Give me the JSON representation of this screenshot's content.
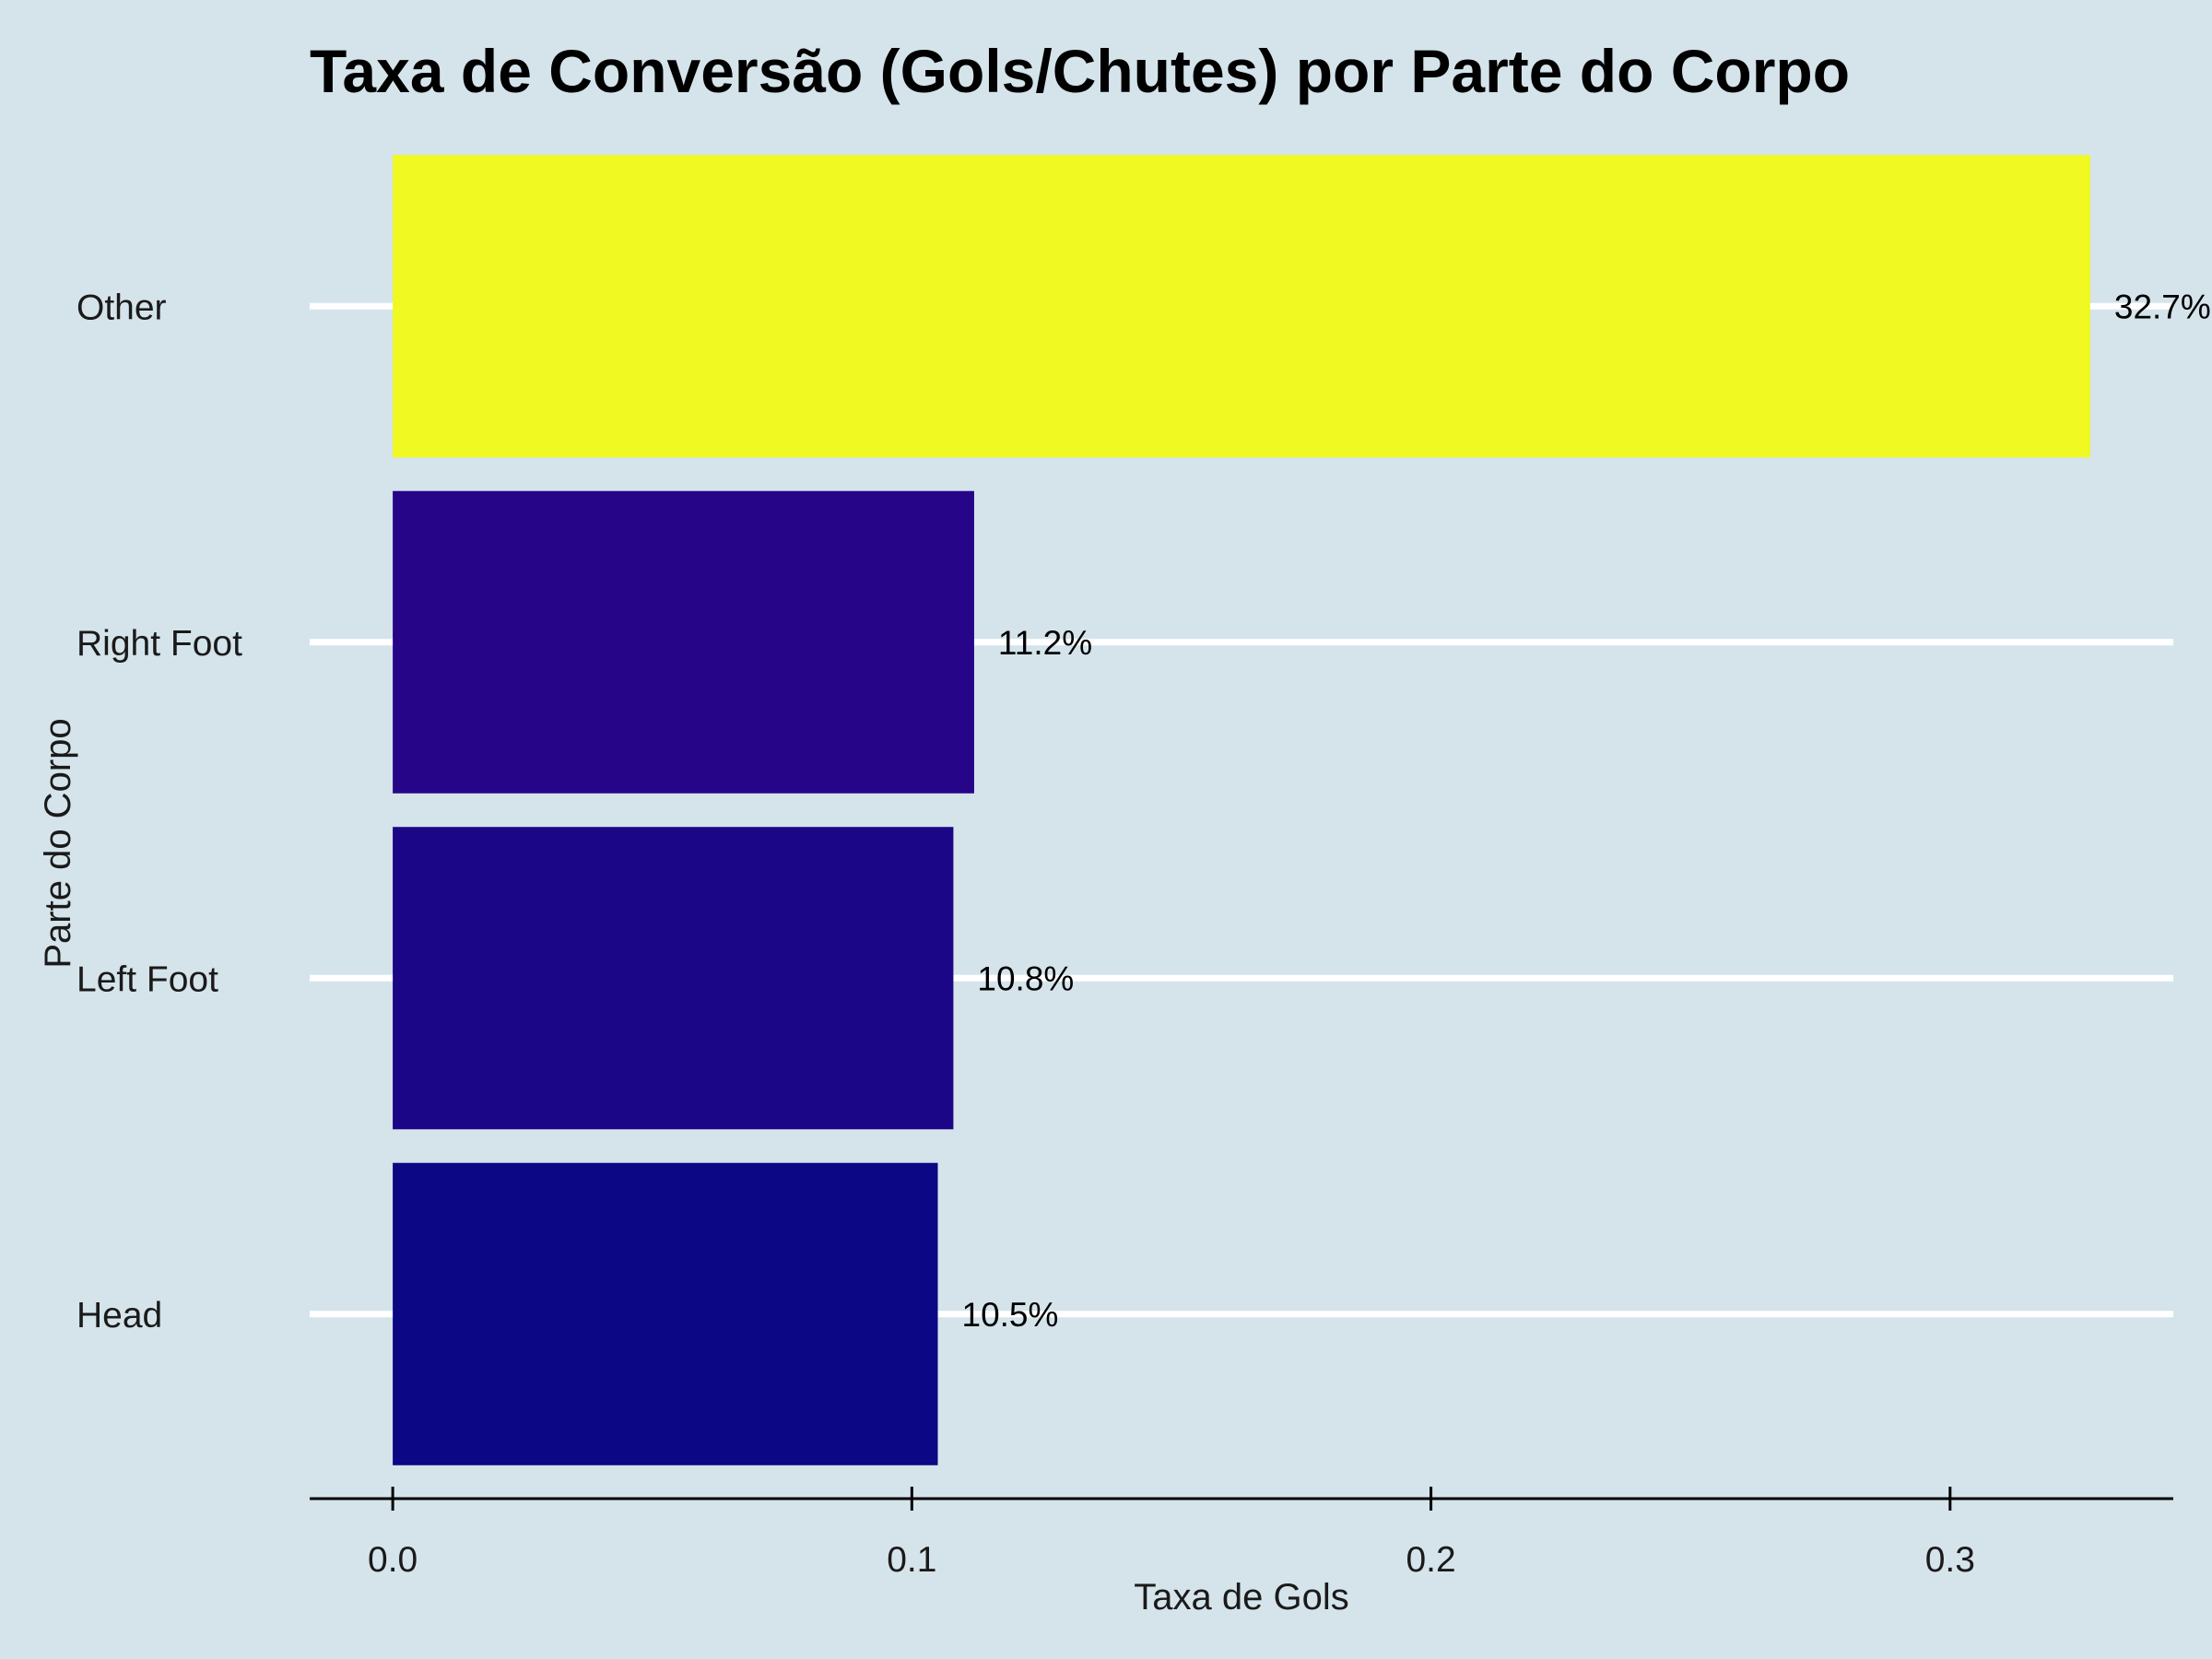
{
  "chart_data": {
    "type": "bar",
    "orientation": "horizontal",
    "title": "Taxa de Conversão (Gols/Chutes) por Parte do Corpo",
    "xlabel": "Taxa de Gols",
    "ylabel": "Parte do Corpo",
    "categories": [
      "Head",
      "Left Foot",
      "Right Foot",
      "Other"
    ],
    "values": [
      0.105,
      0.108,
      0.112,
      0.327
    ],
    "data_labels": [
      "10.5%",
      "10.8%",
      "11.2%",
      "32.7%"
    ],
    "bar_colors": [
      "#0c0784",
      "#1a0687",
      "#260589",
      "#f0f921"
    ],
    "xlim": [
      -0.016,
      0.343
    ],
    "xticks": [
      "0.0",
      "0.1",
      "0.2",
      "0.3"
    ],
    "xtick_values": [
      0.0,
      0.1,
      0.2,
      0.3
    ],
    "grid": "horizontal-major",
    "legend": "none",
    "background": "#d5e4eb"
  }
}
